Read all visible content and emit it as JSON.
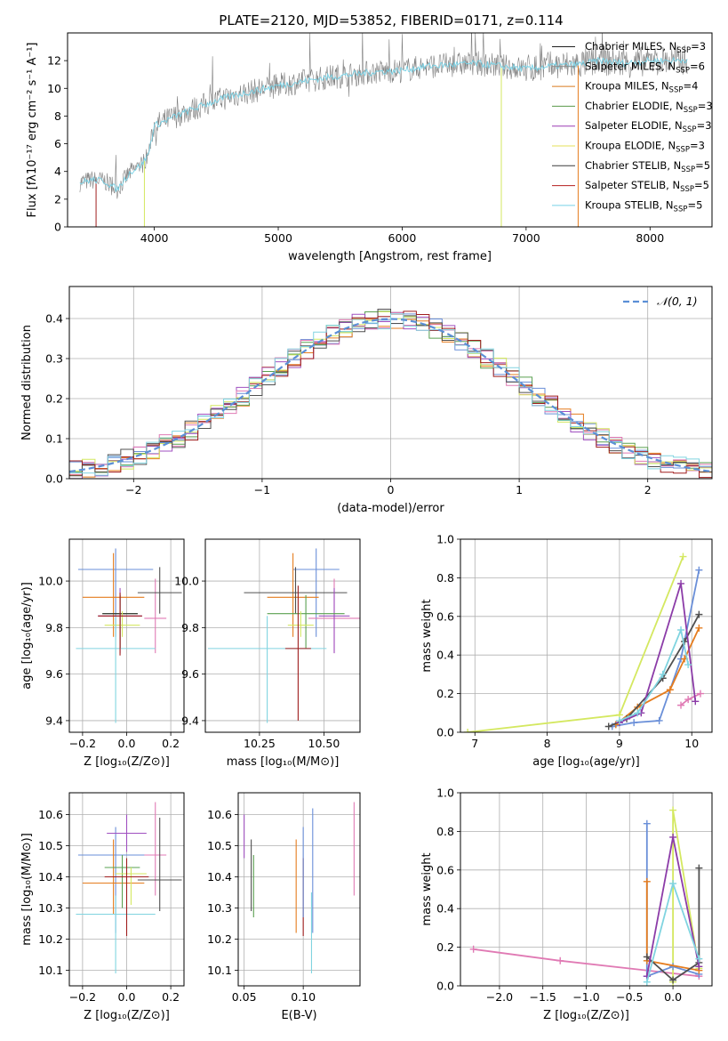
{
  "figure_title": "PLATE=2120, MJD=53852, FIBERID=0171, z=0.114",
  "chart_data": [
    {
      "type": "line",
      "id": "spectrum",
      "xlabel": "wavelength [Angstrom, rest frame]",
      "ylabel": "Flux [fλ10⁻¹⁷ erg cm⁻² s⁻¹ A⁻¹]",
      "xlim": [
        3300,
        8500
      ],
      "ylim": [
        0,
        14
      ],
      "xticks": [
        "4000",
        "5000",
        "6000",
        "7000",
        "8000"
      ],
      "yticks": [
        "0",
        "2",
        "4",
        "6",
        "8",
        "10",
        "12"
      ],
      "legend_position": "top-right",
      "data_color": "#7f7f7f",
      "observed_continuum": {
        "x": [
          3400,
          3500,
          3600,
          3700,
          3800,
          3900,
          3950,
          4000,
          4200,
          4400,
          4600,
          4800,
          5000,
          5200,
          5400,
          5600,
          5800,
          6000,
          6200,
          6400,
          6600,
          6800,
          7000,
          7200,
          7400,
          7600,
          7800,
          8000,
          8200,
          8300
        ],
        "y": [
          3.2,
          3.4,
          3.3,
          2.7,
          3.9,
          4.5,
          5.2,
          7.3,
          8.1,
          8.8,
          9.4,
          9.8,
          10.2,
          10.5,
          10.8,
          11.0,
          11.2,
          11.3,
          11.6,
          11.7,
          11.8,
          11.6,
          11.4,
          11.6,
          11.7,
          12.0,
          11.8,
          12.0,
          12.0,
          12.1
        ]
      },
      "series": [
        {
          "name": "Chabrier MILES, N",
          "sub": "SSP",
          "suffix": "=3",
          "color": "#1f1f1f"
        },
        {
          "name": "Salpeter MILES, N",
          "sub": "SSP",
          "suffix": "=6",
          "color": "#888888"
        },
        {
          "name": "Kroupa MILES, N",
          "sub": "SSP",
          "suffix": "=4",
          "color": "#d97a1e"
        },
        {
          "name": "Chabrier ELODIE, N",
          "sub": "SSP",
          "suffix": "=3",
          "color": "#5a9a4a"
        },
        {
          "name": "Salpeter ELODIE, N",
          "sub": "SSP",
          "suffix": "=3",
          "color": "#9c3cb4"
        },
        {
          "name": "Kroupa ELODIE, N",
          "sub": "SSP",
          "suffix": "=3",
          "color": "#e6e25a"
        },
        {
          "name": "Chabrier STELIB, N",
          "sub": "SSP",
          "suffix": "=5",
          "color": "#3c3c3c"
        },
        {
          "name": "Salpeter STELIB, N",
          "sub": "SSP",
          "suffix": "=5",
          "color": "#b41e1e"
        },
        {
          "name": "Kroupa STELIB, N",
          "sub": "SSP",
          "suffix": "=5",
          "color": "#78d2e6"
        }
      ]
    },
    {
      "type": "bar",
      "id": "residuals",
      "xlabel": "(data-model)/error",
      "ylabel": "Normed distribution",
      "xlim": [
        -2.5,
        2.5
      ],
      "ylim": [
        0,
        0.48
      ],
      "xticks": [
        "−2",
        "−1",
        "0",
        "1",
        "2"
      ],
      "yticks": [
        "0.0",
        "0.1",
        "0.2",
        "0.3",
        "0.4"
      ],
      "legend": "𝒩(0, 1)",
      "legend_position": "top-right",
      "grid": true,
      "bin_width": 0.1,
      "reference_curve": "normal(0,1) pdf",
      "hist_colors": [
        "#6a8fd8",
        "#e57c1e",
        "#5aa050",
        "#a050c0",
        "#e07ab4",
        "#d4e860",
        "#505050",
        "#a01e1e",
        "#80d4e0"
      ]
    },
    {
      "type": "scatter",
      "id": "age_vs_Z",
      "xlabel": "Z [log₁₀(Z/Z⊙)]",
      "ylabel": "age  [log₁₀(age/yr)]",
      "xlim": [
        -0.26,
        0.26
      ],
      "ylim": [
        9.35,
        10.18
      ],
      "xticks": [
        "−0.2",
        "0.0",
        "0.2"
      ],
      "yticks": [
        "9.4",
        "9.6",
        "9.8",
        "10.0"
      ],
      "grid": true,
      "points": [
        {
          "x": -0.05,
          "y": 10.05,
          "xerr": 0.17,
          "yerr": [
            0.29,
            0.09
          ],
          "color": "#6a8fd8"
        },
        {
          "x": -0.06,
          "y": 9.93,
          "xerr": 0.14,
          "yerr": [
            0.17,
            0.19
          ],
          "color": "#e57c1e"
        },
        {
          "x": 0.13,
          "y": 9.84,
          "xerr": 0.05,
          "yerr": [
            0.15,
            0.17
          ],
          "color": "#e07ab4"
        },
        {
          "x": 0.15,
          "y": 9.95,
          "xerr": 0.1,
          "yerr": [
            0.09,
            0.11
          ],
          "color": "#505050"
        },
        {
          "x": -0.03,
          "y": 9.85,
          "xerr": 0.1,
          "yerr": [
            0.16,
            0.12
          ],
          "color": "#a050c0"
        },
        {
          "x": -0.03,
          "y": 9.86,
          "xerr": 0.08,
          "yerr": [
            0.15,
            0.08
          ],
          "color": "#5aa050"
        },
        {
          "x": -0.03,
          "y": 9.86,
          "xerr": 0.08,
          "yerr": [
            0.15,
            0.08
          ],
          "color": "#333333"
        },
        {
          "x": -0.02,
          "y": 9.81,
          "xerr": 0.08,
          "yerr": [
            0.05,
            0.06
          ],
          "color": "#d4e860"
        },
        {
          "x": -0.05,
          "y": 9.71,
          "xerr": 0.18,
          "yerr": [
            0.32,
            0.14
          ],
          "color": "#80d4e0"
        },
        {
          "x": -0.03,
          "y": 9.85,
          "xerr": 0.1,
          "yerr": [
            0.17,
            0.1
          ],
          "color": "#a01e1e"
        }
      ]
    },
    {
      "type": "scatter",
      "id": "age_vs_mass",
      "xlabel": "mass [log₁₀(M/M⊙)]",
      "ylabel": "",
      "xlim": [
        10.04,
        10.64
      ],
      "ylim": [
        9.35,
        10.18
      ],
      "xticks": [
        "10.25",
        "10.50"
      ],
      "yticks": [
        "9.4",
        "9.6",
        "9.8",
        "10.0"
      ],
      "grid": true,
      "points": [
        {
          "x": 10.47,
          "y": 10.05,
          "xerr": 0.09,
          "yerr": [
            0.29,
            0.09
          ],
          "color": "#6a8fd8"
        },
        {
          "x": 10.38,
          "y": 9.93,
          "xerr": 0.1,
          "yerr": [
            0.17,
            0.19
          ],
          "color": "#e57c1e"
        },
        {
          "x": 10.54,
          "y": 9.84,
          "xerr": 0.1,
          "yerr": [
            0.15,
            0.17
          ],
          "color": "#e07ab4"
        },
        {
          "x": 10.39,
          "y": 9.95,
          "xerr": 0.2,
          "yerr": [
            0.09,
            0.11
          ],
          "color": "#505050"
        },
        {
          "x": 10.54,
          "y": 9.85,
          "xerr": 0.06,
          "yerr": [
            0.16,
            0.12
          ],
          "color": "#a050c0"
        },
        {
          "x": 10.43,
          "y": 9.86,
          "xerr": 0.15,
          "yerr": [
            0.15,
            0.08
          ],
          "color": "#5aa050"
        },
        {
          "x": 10.41,
          "y": 9.81,
          "xerr": 0.05,
          "yerr": [
            0.05,
            0.06
          ],
          "color": "#d4e860"
        },
        {
          "x": 10.28,
          "y": 9.71,
          "xerr": 0.23,
          "yerr": [
            0.32,
            0.14
          ],
          "color": "#80d4e0"
        },
        {
          "x": 10.4,
          "y": 9.71,
          "xerr": 0.05,
          "yerr": [
            0.31,
            0.27
          ],
          "color": "#a01e1e"
        }
      ]
    },
    {
      "type": "line",
      "id": "weight_vs_age",
      "xlabel": "age  [log₁₀(age/yr)]",
      "ylabel": "mass weight",
      "xlim": [
        6.8,
        10.28
      ],
      "ylim": [
        0,
        1.0
      ],
      "xticks": [
        "7",
        "8",
        "9",
        "10"
      ],
      "yticks": [
        "0.0",
        "0.2",
        "0.4",
        "0.6",
        "0.8",
        "1.0"
      ],
      "grid": true,
      "series": [
        {
          "color": "#d4e860",
          "x": [
            6.9,
            9.0,
            9.88
          ],
          "y": [
            0.0,
            0.09,
            0.91
          ]
        },
        {
          "color": "#6a8fd8",
          "x": [
            8.9,
            9.2,
            9.55,
            9.85,
            10.1
          ],
          "y": [
            0.03,
            0.05,
            0.06,
            0.38,
            0.84
          ]
        },
        {
          "color": "#e57c1e",
          "x": [
            8.95,
            9.25,
            9.7,
            9.9,
            10.1
          ],
          "y": [
            0.04,
            0.13,
            0.22,
            0.38,
            0.54
          ]
        },
        {
          "color": "#505050",
          "x": [
            8.85,
            9.1,
            9.6,
            9.9,
            10.1
          ],
          "y": [
            0.03,
            0.07,
            0.28,
            0.47,
            0.61
          ]
        },
        {
          "color": "#e07ab4",
          "x": [
            9.85,
            9.95,
            10.12
          ],
          "y": [
            0.14,
            0.17,
            0.2
          ]
        },
        {
          "color": "#8c3ca8",
          "x": [
            9.0,
            9.3,
            9.85,
            10.05
          ],
          "y": [
            0.05,
            0.1,
            0.77,
            0.16
          ]
        },
        {
          "color": "#80d4e0",
          "x": [
            9.0,
            9.25,
            9.6,
            9.85,
            9.95
          ],
          "y": [
            0.06,
            0.1,
            0.3,
            0.53,
            0.35
          ]
        }
      ]
    },
    {
      "type": "scatter",
      "id": "mass_vs_Z",
      "xlabel": "Z [log₁₀(Z/Z⊙)]",
      "ylabel": "mass [log₁₀(M/M⊙)]",
      "xlim": [
        -0.26,
        0.26
      ],
      "ylim": [
        10.05,
        10.67
      ],
      "xticks": [
        "−0.2",
        "0.0",
        "0.2"
      ],
      "yticks": [
        "10.1",
        "10.2",
        "10.3",
        "10.4",
        "10.5",
        "10.6"
      ],
      "grid": true,
      "points": [
        {
          "x": -0.05,
          "y": 10.47,
          "xerr": 0.17,
          "yerr": [
            0.25,
            0.09
          ],
          "color": "#6a8fd8"
        },
        {
          "x": -0.06,
          "y": 10.38,
          "xerr": 0.14,
          "yerr": [
            0.1,
            0.14
          ],
          "color": "#e57c1e"
        },
        {
          "x": 0.13,
          "y": 10.47,
          "xerr": 0.05,
          "yerr": [
            0.13,
            0.17
          ],
          "color": "#e07ab4"
        },
        {
          "x": 0.15,
          "y": 10.39,
          "xerr": 0.1,
          "yerr": [
            0.1,
            0.2
          ],
          "color": "#505050"
        },
        {
          "x": 0.0,
          "y": 10.54,
          "xerr": 0.09,
          "yerr": [
            0.06,
            0.06
          ],
          "color": "#a050c0"
        },
        {
          "x": -0.02,
          "y": 10.43,
          "xerr": 0.08,
          "yerr": [
            0.13,
            0.04
          ],
          "color": "#5aa050"
        },
        {
          "x": 0.02,
          "y": 10.41,
          "xerr": 0.07,
          "yerr": [
            0.1,
            0.02
          ],
          "color": "#d4e860"
        },
        {
          "x": -0.05,
          "y": 10.28,
          "xerr": 0.18,
          "yerr": [
            0.19,
            0.06
          ],
          "color": "#80d4e0"
        },
        {
          "x": 0.0,
          "y": 10.4,
          "xerr": 0.1,
          "yerr": [
            0.19,
            0.06
          ],
          "color": "#a01e1e"
        }
      ]
    },
    {
      "type": "scatter",
      "id": "mass_vs_EBV",
      "xlabel": "E(B-V)",
      "ylabel": "",
      "xlim": [
        0.045,
        0.148
      ],
      "ylim": [
        10.05,
        10.67
      ],
      "xticks": [
        "0.05",
        "0.10"
      ],
      "yticks": [
        "10.1",
        "10.2",
        "10.3",
        "10.4",
        "10.5",
        "10.6"
      ],
      "grid": true,
      "points": [
        {
          "x": 0.05,
          "y": 10.54,
          "yerr": [
            0.08,
            0.06
          ],
          "color": "#a050c0"
        },
        {
          "x": 0.056,
          "y": 10.38,
          "yerr": [
            0.09,
            0.14
          ],
          "color": "#505050"
        },
        {
          "x": 0.058,
          "y": 10.38,
          "yerr": [
            0.11,
            0.09
          ],
          "color": "#5aa050"
        },
        {
          "x": 0.094,
          "y": 10.38,
          "yerr": [
            0.16,
            0.14
          ],
          "color": "#e57c1e"
        },
        {
          "x": 0.1,
          "y": 10.4,
          "yerr": [
            0.19,
            0.06
          ],
          "color": "#a01e1e"
        },
        {
          "x": 0.1,
          "y": 10.47,
          "yerr": [
            0.2,
            0.09
          ],
          "color": "#6a8fd8"
        },
        {
          "x": 0.107,
          "y": 10.28,
          "yerr": [
            0.19,
            0.07
          ],
          "color": "#80d4e0"
        },
        {
          "x": 0.108,
          "y": 10.47,
          "yerr": [
            0.25,
            0.15
          ],
          "color": "#6a8fd8"
        },
        {
          "x": 0.143,
          "y": 10.47,
          "yerr": [
            0.13,
            0.17
          ],
          "color": "#e07ab4"
        }
      ]
    },
    {
      "type": "line",
      "id": "weight_vs_Z",
      "xlabel": "Z [log₁₀(Z/Z⊙)]",
      "ylabel": "mass weight",
      "xlim": [
        -2.45,
        0.45
      ],
      "ylim": [
        0,
        1.0
      ],
      "xticks": [
        "−2.0",
        "−1.5",
        "−1.0",
        "−0.5",
        "0.0"
      ],
      "yticks": [
        "0.0",
        "0.2",
        "0.4",
        "0.6",
        "0.8",
        "1.0"
      ],
      "grid": true,
      "series": [
        {
          "color": "#e07ab4",
          "x": [
            -2.3,
            -1.3,
            0.3
          ],
          "y": [
            0.19,
            0.13,
            0.05
          ]
        },
        {
          "color": "#d4e860",
          "x": [
            0.0,
            0.0,
            0.3
          ],
          "y": [
            0.02,
            0.91,
            0.09
          ]
        },
        {
          "color": "#6a8fd8",
          "x": [
            -0.3,
            -0.3,
            0.0,
            0.3
          ],
          "y": [
            0.84,
            0.05,
            0.1,
            0.06
          ]
        },
        {
          "color": "#e57c1e",
          "x": [
            -0.3,
            -0.3,
            0.3
          ],
          "y": [
            0.54,
            0.13,
            0.08
          ]
        },
        {
          "color": "#505050",
          "x": [
            -0.3,
            0.0,
            0.3,
            0.3
          ],
          "y": [
            0.15,
            0.03,
            0.12,
            0.61
          ]
        },
        {
          "color": "#8c3ca8",
          "x": [
            -0.3,
            0.0,
            0.3
          ],
          "y": [
            0.05,
            0.77,
            0.1
          ]
        },
        {
          "color": "#80d4e0",
          "x": [
            -0.3,
            0.0,
            0.3
          ],
          "y": [
            0.02,
            0.53,
            0.14
          ]
        }
      ]
    }
  ]
}
